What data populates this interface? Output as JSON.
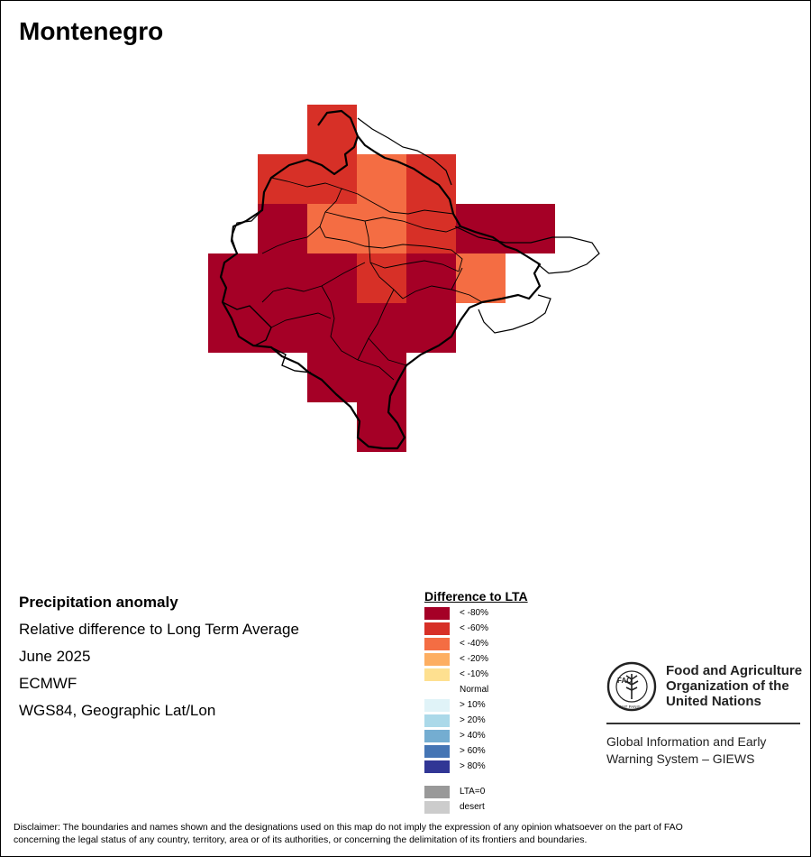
{
  "map": {
    "title": "Montenegro",
    "grid_colors": {
      "lt80": "#a50026",
      "lt60": "#d73027",
      "lt40": "#f46d43"
    }
  },
  "info": {
    "line1": "Precipitation anomaly",
    "line2": "Relative difference to Long Term Average",
    "line3": "June 2025",
    "line4": "ECMWF",
    "line5": "WGS84, Geographic Lat/Lon"
  },
  "legend": {
    "title": "Difference to LTA",
    "items": [
      {
        "label": "< -80%",
        "color": "#a50026"
      },
      {
        "label": "< -60%",
        "color": "#d73027"
      },
      {
        "label": "< -40%",
        "color": "#f46d43"
      },
      {
        "label": "< -20%",
        "color": "#fdae61"
      },
      {
        "label": "< -10%",
        "color": "#fee090"
      },
      {
        "label": "Normal",
        "color": "#ffffff"
      },
      {
        "label": "> 10%",
        "color": "#e0f3f8"
      },
      {
        "label": "> 20%",
        "color": "#abd9e9"
      },
      {
        "label": "> 40%",
        "color": "#74add1"
      },
      {
        "label": "> 60%",
        "color": "#4575b4"
      },
      {
        "label": "> 80%",
        "color": "#313695"
      },
      {
        "label": "LTA=0",
        "color": "#999999"
      },
      {
        "label": "desert",
        "color": "#cccccc"
      }
    ]
  },
  "branding": {
    "fao_line1": "Food and Agriculture",
    "fao_line2": "Organization of the",
    "fao_line3": "United Nations",
    "giews_line1": "Global Information and Early",
    "giews_line2": "Warning System – GIEWS",
    "logo_letters": "FAO",
    "logo_motto": "FIAT PANIS"
  },
  "disclaimer": {
    "line1": "Disclaimer: The boundaries and names shown and the designations used on this map do not imply the expression of any opinion whatsoever on the part of FAO",
    "line2": "concerning the legal status of any country, territory, area or of its authorities, or concerning the delimitation of its frontiers and boundaries."
  }
}
